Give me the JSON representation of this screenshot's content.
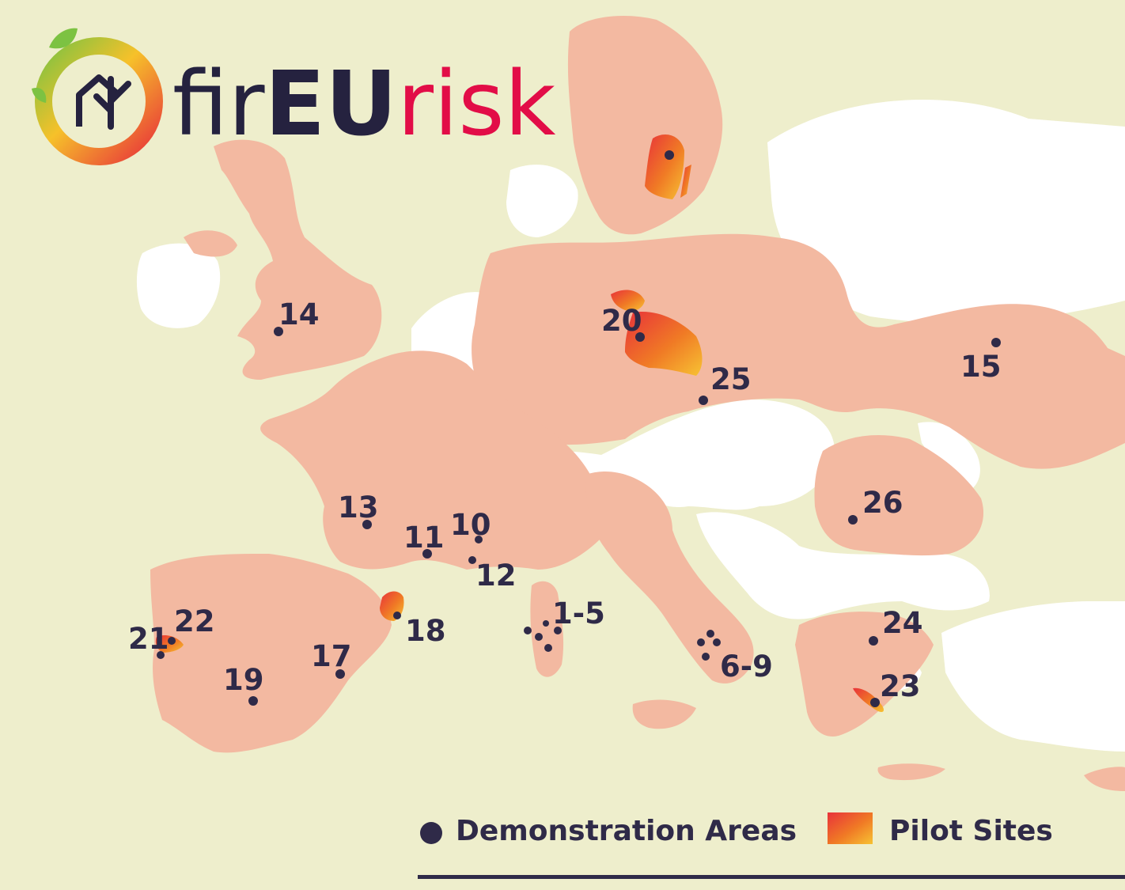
{
  "logo": {
    "part1": "fir",
    "part2": "EU",
    "part3": "risk"
  },
  "legend": {
    "demo_label": "Demonstration Areas",
    "pilot_label": "Pilot Sites",
    "demo_color": "#2f2a48",
    "pilot_gradient": [
      "#e83a3a",
      "#f7c233"
    ]
  },
  "colors": {
    "background": "#eeeecc",
    "country_fill": "#f3b9a1",
    "water": "#ffffff"
  },
  "sites": [
    {
      "id": "14",
      "label": "14"
    },
    {
      "id": "20",
      "label": "20"
    },
    {
      "id": "25",
      "label": "25"
    },
    {
      "id": "15",
      "label": "15"
    },
    {
      "id": "13",
      "label": "13"
    },
    {
      "id": "10",
      "label": "10"
    },
    {
      "id": "11",
      "label": "11"
    },
    {
      "id": "12",
      "label": "12"
    },
    {
      "id": "26",
      "label": "26"
    },
    {
      "id": "1-5",
      "label": "1-5"
    },
    {
      "id": "22",
      "label": "22"
    },
    {
      "id": "21",
      "label": "21"
    },
    {
      "id": "18",
      "label": "18"
    },
    {
      "id": "17",
      "label": "17"
    },
    {
      "id": "19",
      "label": "19"
    },
    {
      "id": "6-9",
      "label": "6-9"
    },
    {
      "id": "24",
      "label": "24"
    },
    {
      "id": "23",
      "label": "23"
    }
  ]
}
